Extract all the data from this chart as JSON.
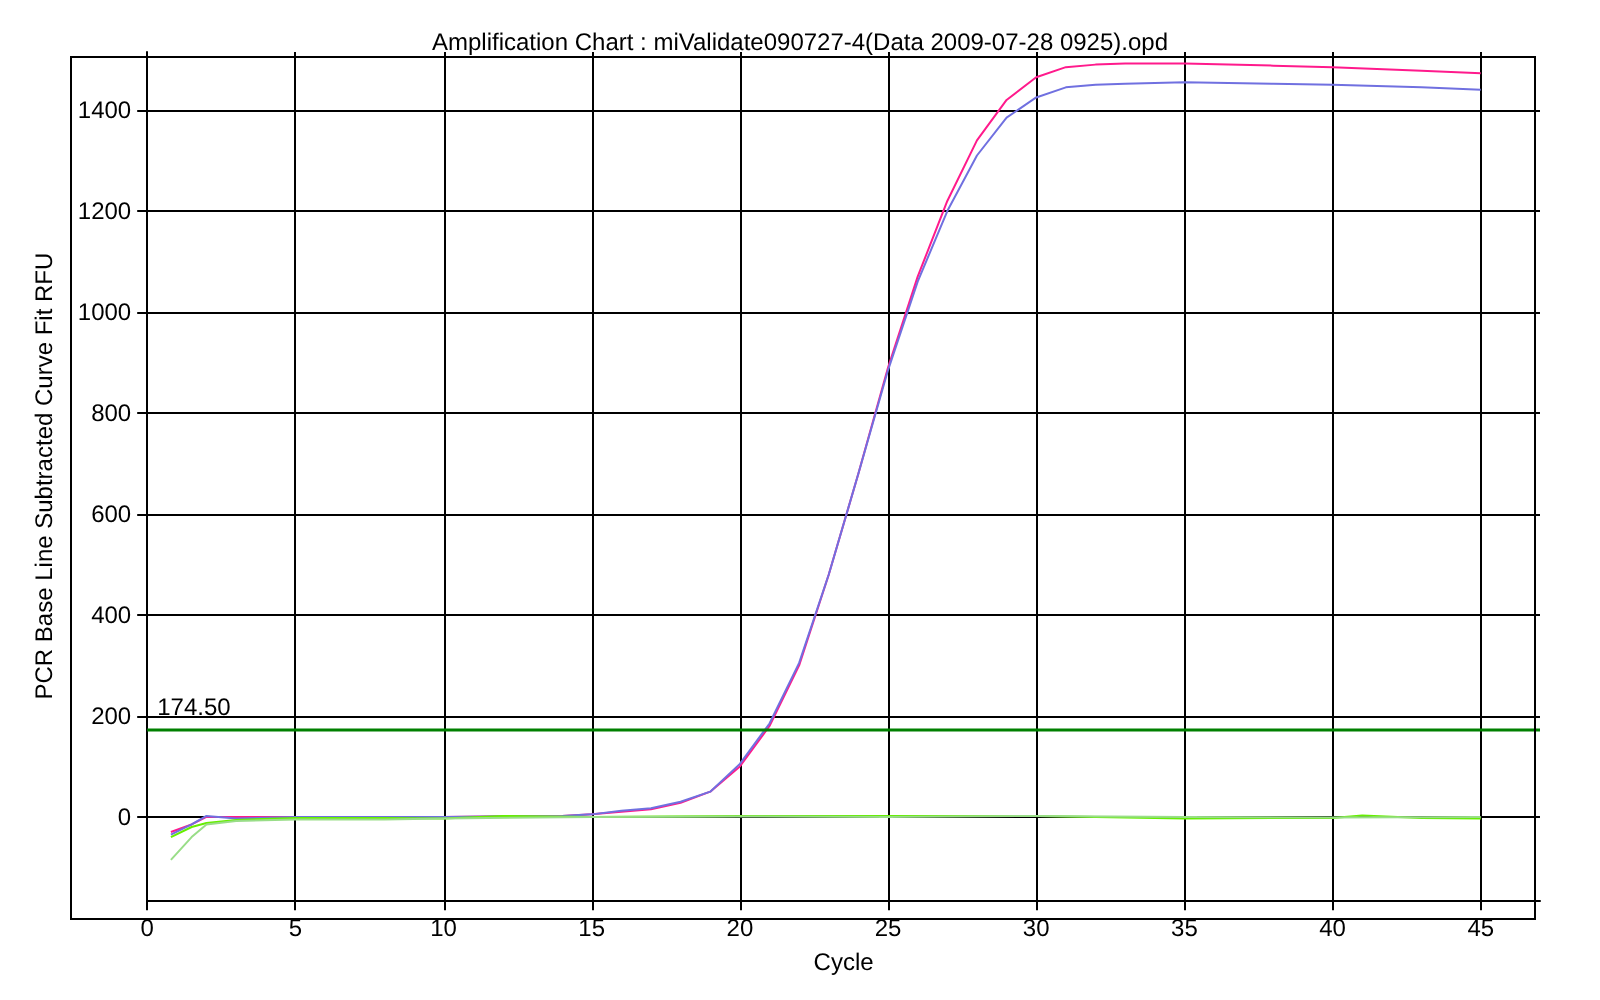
{
  "chart_data": {
    "type": "line",
    "title": "Amplification Chart : miValidate090727-4(Data 2009-07-28 0925).opd",
    "xlabel": "Cycle",
    "ylabel": "PCR Base Line Subtracted Curve Fit RFU",
    "xlim": [
      0,
      47
    ],
    "xticks": [
      0,
      5,
      10,
      15,
      20,
      25,
      30,
      35,
      40,
      45
    ],
    "ylim": [
      -165,
      1515
    ],
    "yticks": [
      0,
      200,
      400,
      600,
      800,
      1000,
      1200,
      1400
    ],
    "grid": true,
    "marker": "none",
    "line_style": "solid",
    "ref_lines": [
      {
        "axis": "y",
        "value": 174.5,
        "label": "174.50",
        "color": "#008000"
      }
    ],
    "series": [
      {
        "color": "#ff1a8c",
        "x": [
          0.8,
          1.5,
          2,
          3,
          5,
          10,
          14,
          15,
          16,
          17,
          18,
          19,
          20,
          21,
          22,
          23,
          24,
          25,
          26,
          27,
          28,
          29,
          30,
          31,
          32,
          33,
          35,
          38,
          40,
          43,
          45
        ],
        "values": [
          -30,
          -15,
          0,
          0,
          0,
          0,
          2,
          5,
          10,
          15,
          28,
          50,
          100,
          180,
          300,
          480,
          680,
          890,
          1070,
          1220,
          1340,
          1420,
          1465,
          1485,
          1490,
          1492,
          1492,
          1488,
          1485,
          1478,
          1473
        ]
      },
      {
        "color": "#7070e0",
        "x": [
          0.8,
          1.5,
          2,
          3,
          5,
          10,
          14,
          15,
          16,
          17,
          18,
          19,
          20,
          21,
          22,
          23,
          24,
          25,
          26,
          27,
          28,
          29,
          30,
          31,
          32,
          33,
          35,
          38,
          40,
          43,
          45
        ],
        "values": [
          -35,
          -15,
          2,
          -3,
          0,
          0,
          2,
          5,
          12,
          17,
          30,
          50,
          105,
          185,
          305,
          480,
          680,
          885,
          1060,
          1200,
          1310,
          1385,
          1425,
          1445,
          1450,
          1452,
          1455,
          1452,
          1450,
          1445,
          1440
        ]
      },
      {
        "color": "#66ee00",
        "x": [
          0.8,
          1.5,
          2,
          3,
          5,
          8,
          10,
          12,
          15,
          20,
          25,
          30,
          35,
          40,
          41,
          43,
          45
        ],
        "values": [
          -40,
          -20,
          -12,
          -6,
          -2,
          -2,
          -3,
          2,
          0,
          2,
          2,
          2,
          -3,
          -2,
          3,
          -2,
          -3
        ]
      },
      {
        "color": "#99dd88",
        "x": [
          0.8,
          1.5,
          2,
          3,
          5,
          8,
          10,
          15,
          20,
          25,
          30,
          35,
          40,
          45
        ],
        "values": [
          -85,
          -40,
          -15,
          -8,
          -5,
          -5,
          -3,
          0,
          1,
          0,
          2,
          0,
          -1,
          0
        ]
      }
    ]
  }
}
